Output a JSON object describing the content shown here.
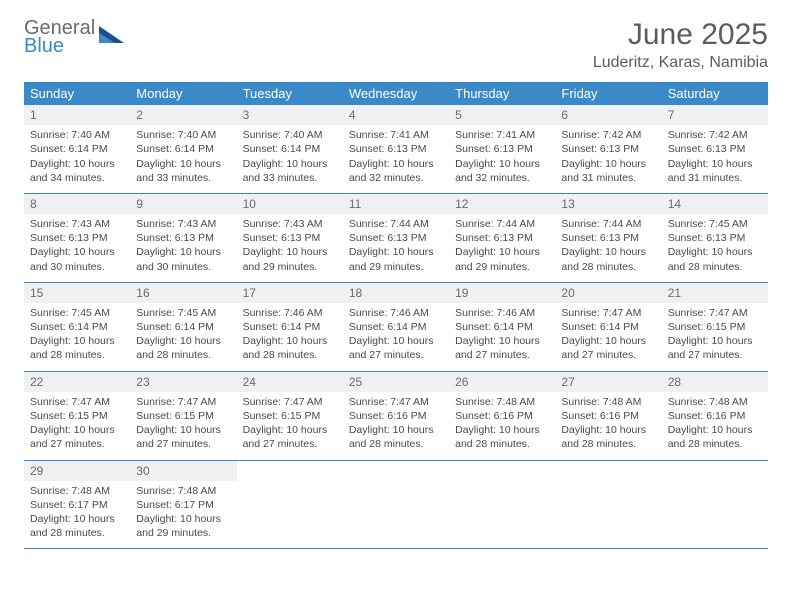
{
  "logo": {
    "general": "General",
    "blue": "Blue"
  },
  "title": "June 2025",
  "location": "Luderitz, Karas, Namibia",
  "colors": {
    "header_bg": "#3a8ac9",
    "header_text": "#ffffff",
    "text": "#4a4a4a",
    "daynum_bg": "#eef0f2",
    "border": "#3a8ac9",
    "logo_gray": "#6b6b6b",
    "logo_blue": "#3a8ac9"
  },
  "weekdays": [
    "Sunday",
    "Monday",
    "Tuesday",
    "Wednesday",
    "Thursday",
    "Friday",
    "Saturday"
  ],
  "weeks": [
    [
      {
        "day": "1",
        "sunrise": "Sunrise: 7:40 AM",
        "sunset": "Sunset: 6:14 PM",
        "daylight1": "Daylight: 10 hours",
        "daylight2": "and 34 minutes."
      },
      {
        "day": "2",
        "sunrise": "Sunrise: 7:40 AM",
        "sunset": "Sunset: 6:14 PM",
        "daylight1": "Daylight: 10 hours",
        "daylight2": "and 33 minutes."
      },
      {
        "day": "3",
        "sunrise": "Sunrise: 7:40 AM",
        "sunset": "Sunset: 6:14 PM",
        "daylight1": "Daylight: 10 hours",
        "daylight2": "and 33 minutes."
      },
      {
        "day": "4",
        "sunrise": "Sunrise: 7:41 AM",
        "sunset": "Sunset: 6:13 PM",
        "daylight1": "Daylight: 10 hours",
        "daylight2": "and 32 minutes."
      },
      {
        "day": "5",
        "sunrise": "Sunrise: 7:41 AM",
        "sunset": "Sunset: 6:13 PM",
        "daylight1": "Daylight: 10 hours",
        "daylight2": "and 32 minutes."
      },
      {
        "day": "6",
        "sunrise": "Sunrise: 7:42 AM",
        "sunset": "Sunset: 6:13 PM",
        "daylight1": "Daylight: 10 hours",
        "daylight2": "and 31 minutes."
      },
      {
        "day": "7",
        "sunrise": "Sunrise: 7:42 AM",
        "sunset": "Sunset: 6:13 PM",
        "daylight1": "Daylight: 10 hours",
        "daylight2": "and 31 minutes."
      }
    ],
    [
      {
        "day": "8",
        "sunrise": "Sunrise: 7:43 AM",
        "sunset": "Sunset: 6:13 PM",
        "daylight1": "Daylight: 10 hours",
        "daylight2": "and 30 minutes."
      },
      {
        "day": "9",
        "sunrise": "Sunrise: 7:43 AM",
        "sunset": "Sunset: 6:13 PM",
        "daylight1": "Daylight: 10 hours",
        "daylight2": "and 30 minutes."
      },
      {
        "day": "10",
        "sunrise": "Sunrise: 7:43 AM",
        "sunset": "Sunset: 6:13 PM",
        "daylight1": "Daylight: 10 hours",
        "daylight2": "and 29 minutes."
      },
      {
        "day": "11",
        "sunrise": "Sunrise: 7:44 AM",
        "sunset": "Sunset: 6:13 PM",
        "daylight1": "Daylight: 10 hours",
        "daylight2": "and 29 minutes."
      },
      {
        "day": "12",
        "sunrise": "Sunrise: 7:44 AM",
        "sunset": "Sunset: 6:13 PM",
        "daylight1": "Daylight: 10 hours",
        "daylight2": "and 29 minutes."
      },
      {
        "day": "13",
        "sunrise": "Sunrise: 7:44 AM",
        "sunset": "Sunset: 6:13 PM",
        "daylight1": "Daylight: 10 hours",
        "daylight2": "and 28 minutes."
      },
      {
        "day": "14",
        "sunrise": "Sunrise: 7:45 AM",
        "sunset": "Sunset: 6:13 PM",
        "daylight1": "Daylight: 10 hours",
        "daylight2": "and 28 minutes."
      }
    ],
    [
      {
        "day": "15",
        "sunrise": "Sunrise: 7:45 AM",
        "sunset": "Sunset: 6:14 PM",
        "daylight1": "Daylight: 10 hours",
        "daylight2": "and 28 minutes."
      },
      {
        "day": "16",
        "sunrise": "Sunrise: 7:45 AM",
        "sunset": "Sunset: 6:14 PM",
        "daylight1": "Daylight: 10 hours",
        "daylight2": "and 28 minutes."
      },
      {
        "day": "17",
        "sunrise": "Sunrise: 7:46 AM",
        "sunset": "Sunset: 6:14 PM",
        "daylight1": "Daylight: 10 hours",
        "daylight2": "and 28 minutes."
      },
      {
        "day": "18",
        "sunrise": "Sunrise: 7:46 AM",
        "sunset": "Sunset: 6:14 PM",
        "daylight1": "Daylight: 10 hours",
        "daylight2": "and 27 minutes."
      },
      {
        "day": "19",
        "sunrise": "Sunrise: 7:46 AM",
        "sunset": "Sunset: 6:14 PM",
        "daylight1": "Daylight: 10 hours",
        "daylight2": "and 27 minutes."
      },
      {
        "day": "20",
        "sunrise": "Sunrise: 7:47 AM",
        "sunset": "Sunset: 6:14 PM",
        "daylight1": "Daylight: 10 hours",
        "daylight2": "and 27 minutes."
      },
      {
        "day": "21",
        "sunrise": "Sunrise: 7:47 AM",
        "sunset": "Sunset: 6:15 PM",
        "daylight1": "Daylight: 10 hours",
        "daylight2": "and 27 minutes."
      }
    ],
    [
      {
        "day": "22",
        "sunrise": "Sunrise: 7:47 AM",
        "sunset": "Sunset: 6:15 PM",
        "daylight1": "Daylight: 10 hours",
        "daylight2": "and 27 minutes."
      },
      {
        "day": "23",
        "sunrise": "Sunrise: 7:47 AM",
        "sunset": "Sunset: 6:15 PM",
        "daylight1": "Daylight: 10 hours",
        "daylight2": "and 27 minutes."
      },
      {
        "day": "24",
        "sunrise": "Sunrise: 7:47 AM",
        "sunset": "Sunset: 6:15 PM",
        "daylight1": "Daylight: 10 hours",
        "daylight2": "and 27 minutes."
      },
      {
        "day": "25",
        "sunrise": "Sunrise: 7:47 AM",
        "sunset": "Sunset: 6:16 PM",
        "daylight1": "Daylight: 10 hours",
        "daylight2": "and 28 minutes."
      },
      {
        "day": "26",
        "sunrise": "Sunrise: 7:48 AM",
        "sunset": "Sunset: 6:16 PM",
        "daylight1": "Daylight: 10 hours",
        "daylight2": "and 28 minutes."
      },
      {
        "day": "27",
        "sunrise": "Sunrise: 7:48 AM",
        "sunset": "Sunset: 6:16 PM",
        "daylight1": "Daylight: 10 hours",
        "daylight2": "and 28 minutes."
      },
      {
        "day": "28",
        "sunrise": "Sunrise: 7:48 AM",
        "sunset": "Sunset: 6:16 PM",
        "daylight1": "Daylight: 10 hours",
        "daylight2": "and 28 minutes."
      }
    ],
    [
      {
        "day": "29",
        "sunrise": "Sunrise: 7:48 AM",
        "sunset": "Sunset: 6:17 PM",
        "daylight1": "Daylight: 10 hours",
        "daylight2": "and 28 minutes."
      },
      {
        "day": "30",
        "sunrise": "Sunrise: 7:48 AM",
        "sunset": "Sunset: 6:17 PM",
        "daylight1": "Daylight: 10 hours",
        "daylight2": "and 29 minutes."
      },
      null,
      null,
      null,
      null,
      null
    ]
  ]
}
